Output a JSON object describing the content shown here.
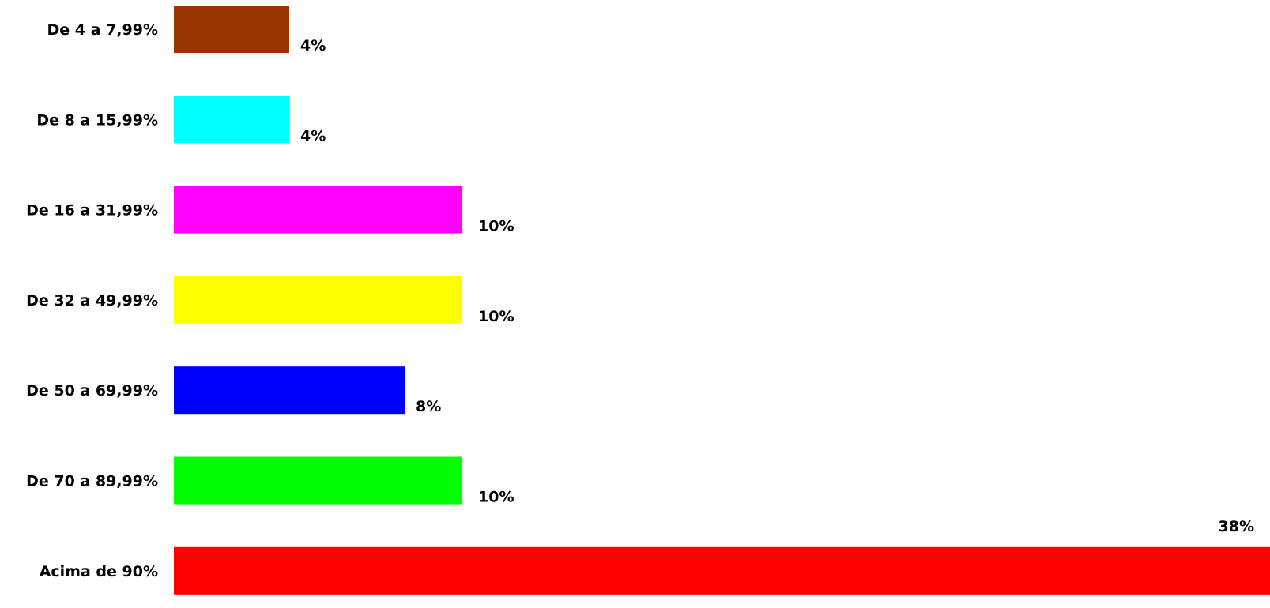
{
  "chart_data": {
    "type": "bar",
    "orientation": "horizontal",
    "title": "",
    "xlabel": "",
    "ylabel": "",
    "grid": false,
    "legend": "none",
    "xlim": [
      0,
      38
    ],
    "categories": [
      "De 4 a 7,99%",
      "De 8 a 15,99%",
      "De 16 a 31,99%",
      "De 32 a 49,99%",
      "De 50 a 69,99%",
      "De 70 a 89,99%",
      "Acima de 90%"
    ],
    "values": [
      4,
      4,
      10,
      10,
      8,
      10,
      38
    ],
    "value_labels": [
      "4%",
      "4%",
      "10%",
      "10%",
      "8%",
      "10%",
      "38%"
    ],
    "colors": [
      "#993300",
      "#00ffff",
      "#ff00ff",
      "#ffff00",
      "#0000ff",
      "#00ff00",
      "#ff0000"
    ]
  }
}
